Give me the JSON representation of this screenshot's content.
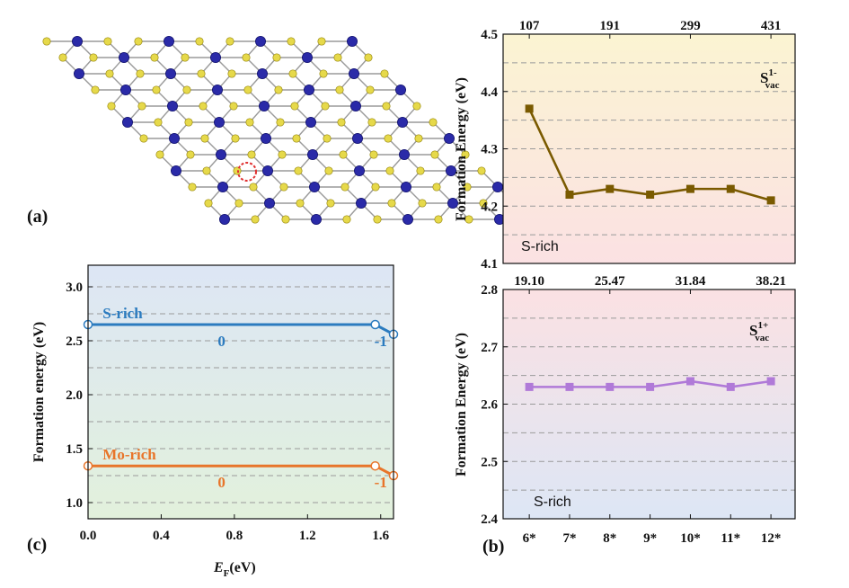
{
  "panel_labels": {
    "a": "(a)",
    "b": "(b)",
    "c": "(c)"
  },
  "colors": {
    "mo_atom": "#2a2aa8",
    "s_atom": "#e6d94a",
    "vacancy_ring": "#e03030",
    "s_rich_line": "#2b7bbf",
    "mo_rich_line": "#e8752a",
    "top_series": "#7a5a00",
    "bottom_series": "#b07ad8"
  },
  "structure": {
    "mo_atom_icon": "mo-atom",
    "s_atom_icon": "s-atom",
    "vacancy_icon": "vacancy-marker"
  },
  "chart_data": [
    {
      "id": "b-top",
      "type": "line",
      "categories": [
        "6*",
        "7*",
        "8*",
        "9*",
        "10*",
        "11*",
        "12*"
      ],
      "series": [
        {
          "name": "S_vac^1-",
          "values": [
            4.37,
            4.22,
            4.23,
            4.22,
            4.23,
            4.23,
            4.21
          ]
        }
      ],
      "ylabel": "Formation Energy (eV)",
      "ylim": [
        4.1,
        4.5
      ],
      "yticks": [
        "4.1",
        "4.2",
        "4.3",
        "4.4",
        "4.5"
      ],
      "top_axis_ticks": [
        "107",
        "191",
        "299",
        "431"
      ],
      "label_main": "S",
      "label_sup": "1-",
      "label_sub": "vac",
      "condition": "S-rich",
      "grid": "dashed"
    },
    {
      "id": "b-bottom",
      "type": "line",
      "categories": [
        "6*",
        "7*",
        "8*",
        "9*",
        "10*",
        "11*",
        "12*"
      ],
      "series": [
        {
          "name": "S_vac^1+",
          "values": [
            2.63,
            2.63,
            2.63,
            2.63,
            2.64,
            2.63,
            2.64
          ]
        }
      ],
      "ylabel": "Formation Energy (eV)",
      "ylim": [
        2.4,
        2.8
      ],
      "yticks": [
        "2.4",
        "2.5",
        "2.6",
        "2.7",
        "2.8"
      ],
      "top_axis_ticks": [
        "19.10",
        "25.47",
        "31.84",
        "38.21"
      ],
      "label_main": "S",
      "label_sup": "1+",
      "label_sub": "vac",
      "condition": "S-rich",
      "grid": "dashed"
    },
    {
      "id": "c",
      "type": "line",
      "xlabel_main": "E",
      "xlabel_sub": "F",
      "xlabel_unit": "(eV)",
      "ylabel": "Formation energy (eV)",
      "xlim": [
        0,
        1.67
      ],
      "ylim": [
        0.85,
        3.2
      ],
      "xticks": [
        "0.0",
        "0.4",
        "0.8",
        "1.2",
        "1.6"
      ],
      "yticks": [
        "1.0",
        "1.5",
        "2.0",
        "2.5",
        "3.0"
      ],
      "series": [
        {
          "name": "S-rich",
          "points": [
            [
              0,
              2.65
            ],
            [
              1.57,
              2.65
            ],
            [
              1.67,
              2.56
            ]
          ],
          "charge_labels": [
            "0",
            "-1"
          ]
        },
        {
          "name": "Mo-rich",
          "points": [
            [
              0,
              1.34
            ],
            [
              1.57,
              1.34
            ],
            [
              1.67,
              1.25
            ]
          ],
          "charge_labels": [
            "0",
            "-1"
          ]
        }
      ],
      "grid": "dashed"
    }
  ]
}
